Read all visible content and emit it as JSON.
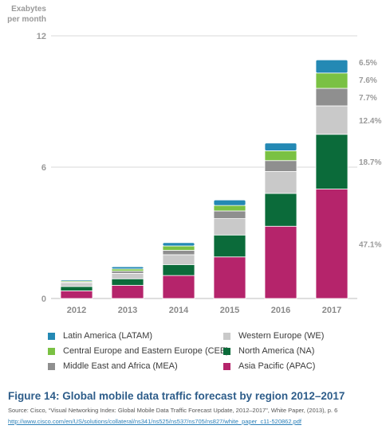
{
  "chart_data": {
    "type": "bar",
    "stacked": true,
    "ylabel_line1": "Exabytes",
    "ylabel_line2": "per month",
    "ylim": [
      0,
      12
    ],
    "yticks": [
      "0",
      "6",
      "12"
    ],
    "ytick_values": [
      0,
      6,
      12
    ],
    "grid": true,
    "categories": [
      "2012",
      "2013",
      "2014",
      "2015",
      "2016",
      "2017"
    ],
    "series": [
      {
        "name": "Asia Pacific (APAC)",
        "color": "#b5246b",
        "values": [
          0.35,
          0.6,
          1.05,
          1.9,
          3.3,
          5.0
        ],
        "share": "47.1%"
      },
      {
        "name": "North America (NA)",
        "color": "#0b6b3a",
        "values": [
          0.2,
          0.3,
          0.5,
          1.0,
          1.5,
          2.5
        ],
        "share": "18.7%"
      },
      {
        "name": "Western Europe (WE)",
        "color": "#c9c9c9",
        "values": [
          0.15,
          0.25,
          0.45,
          0.75,
          1.0,
          1.3
        ],
        "share": "12.4%"
      },
      {
        "name": "Middle East and Africa (MEA)",
        "color": "#8f8f8f",
        "values": [
          0.05,
          0.1,
          0.2,
          0.35,
          0.5,
          0.8
        ],
        "share": "7.7%"
      },
      {
        "name": "Central Europe and Eastern Europe (CEE)",
        "color": "#7ac143",
        "values": [
          0.05,
          0.1,
          0.2,
          0.25,
          0.45,
          0.7
        ],
        "share": "7.6%"
      },
      {
        "name": "Latin America (LATAM)",
        "color": "#2489b4",
        "values": [
          0.05,
          0.1,
          0.15,
          0.25,
          0.35,
          0.6
        ],
        "share": "6.5%"
      }
    ],
    "legend_order": [
      5,
      2,
      4,
      1,
      3,
      0
    ],
    "legend_placement": "bottom"
  },
  "caption": {
    "title": "Figure 14: Global mobile data traffic forecast by region 2012–2017",
    "source": "Source: Cisco, “Visual Networking Index: Global Mobile Data Traffic Forecast Update, 2012–2017”, White Paper, (2013), p. 6",
    "link": "http://www.cisco.com/en/US/solutions/collateral/ns341/ns525/ns537/ns705/ns827/white_paper_c11-520862.pdf"
  }
}
